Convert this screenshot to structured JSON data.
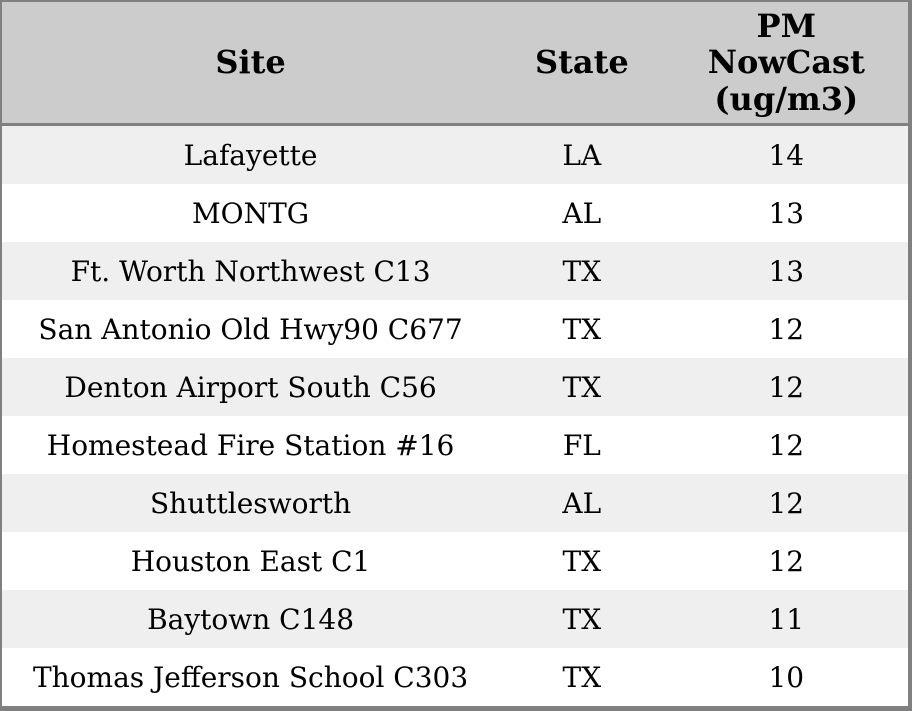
{
  "table": {
    "headers": {
      "site": "Site",
      "state": "State",
      "pm": "PM\nNowCast\n(ug/m3)"
    },
    "rows": [
      {
        "site": "Lafayette",
        "state": "LA",
        "pm": "14"
      },
      {
        "site": "MONTG",
        "state": "AL",
        "pm": "13"
      },
      {
        "site": "Ft. Worth Northwest C13",
        "state": "TX",
        "pm": "13"
      },
      {
        "site": "San Antonio Old Hwy90 C677",
        "state": "TX",
        "pm": "12"
      },
      {
        "site": "Denton Airport South C56",
        "state": "TX",
        "pm": "12"
      },
      {
        "site": "Homestead Fire Station #16",
        "state": "FL",
        "pm": "12"
      },
      {
        "site": "Shuttlesworth",
        "state": "AL",
        "pm": "12"
      },
      {
        "site": "Houston East C1",
        "state": "TX",
        "pm": "12"
      },
      {
        "site": "Baytown C148",
        "state": "TX",
        "pm": "11"
      },
      {
        "site": "Thomas Jefferson School C303",
        "state": "TX",
        "pm": "10"
      }
    ],
    "colors": {
      "header_bg": "#cccccc",
      "row_alt_bg": "#efefef",
      "row_bg": "#ffffff",
      "border": "#808080",
      "text": "#000000"
    }
  },
  "chart_data": {
    "type": "table",
    "title": "",
    "columns": [
      "Site",
      "State",
      "PM NowCast (ug/m3)"
    ],
    "rows": [
      [
        "Lafayette",
        "LA",
        14
      ],
      [
        "MONTG",
        "AL",
        13
      ],
      [
        "Ft. Worth Northwest C13",
        "TX",
        13
      ],
      [
        "San Antonio Old Hwy90 C677",
        "TX",
        12
      ],
      [
        "Denton Airport South C56",
        "TX",
        12
      ],
      [
        "Homestead Fire Station #16",
        "FL",
        12
      ],
      [
        "Shuttlesworth",
        "AL",
        12
      ],
      [
        "Houston East C1",
        "TX",
        12
      ],
      [
        "Baytown C148",
        "TX",
        11
      ],
      [
        "Thomas Jefferson School C303",
        "TX",
        10
      ]
    ],
    "layout": {
      "header_lines_pm_column": [
        "PM",
        "NowCast",
        "(ug/m3)"
      ],
      "row_striping": "alternating gray/white starting gray",
      "text_align": "center"
    }
  }
}
